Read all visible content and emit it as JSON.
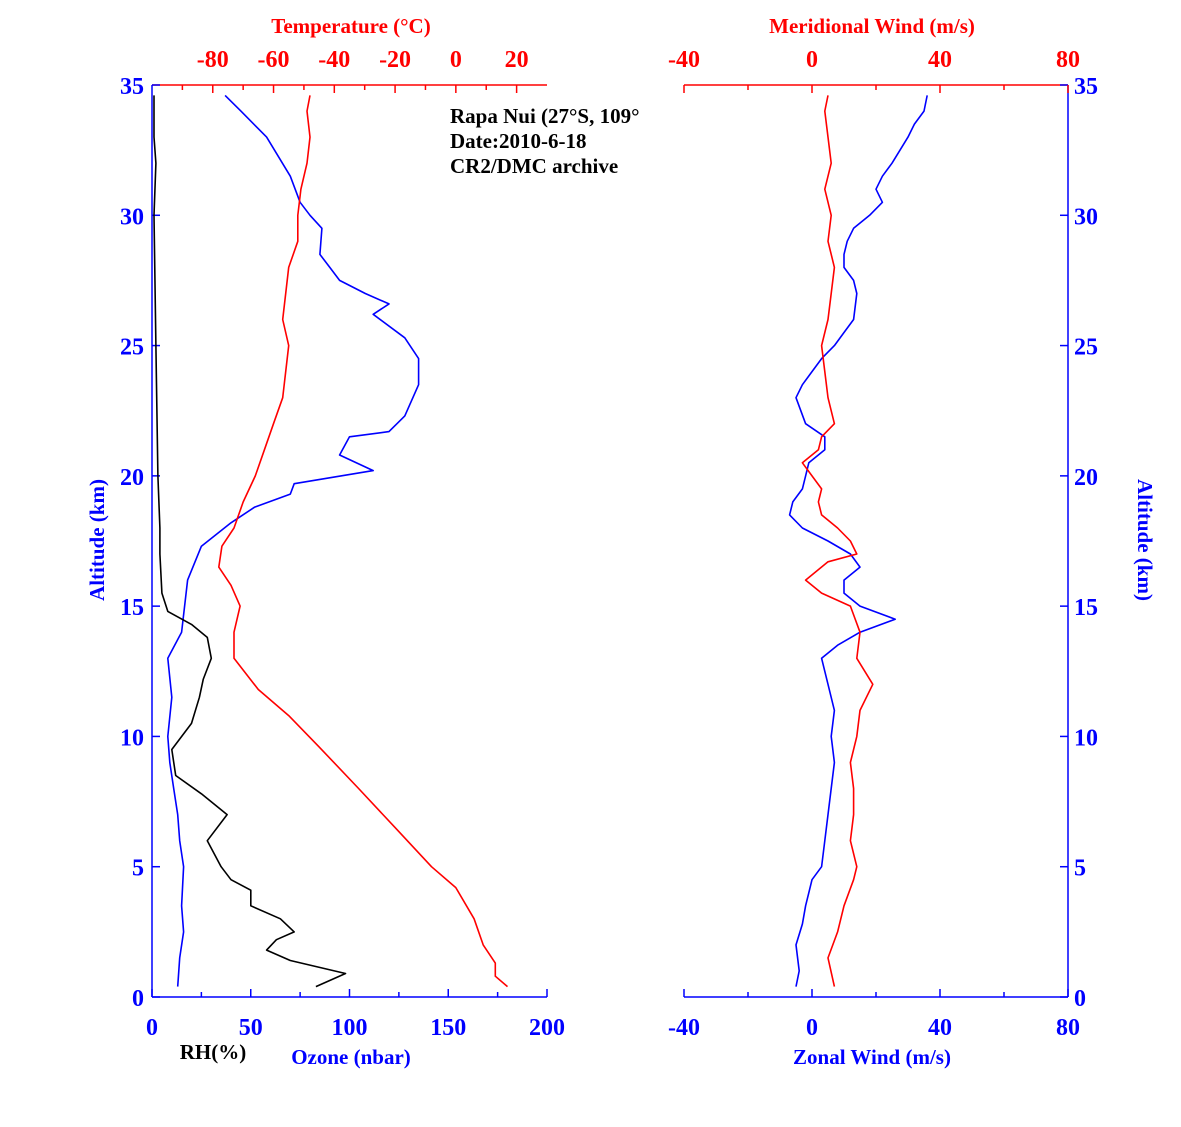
{
  "colors": {
    "blue": "#0000ff",
    "red": "#ff0000",
    "black": "#000000"
  },
  "annotation": {
    "lines": [
      "Rapa Nui (27°S, 109°",
      "Date:2010-6-18",
      "CR2/DMC archive"
    ]
  },
  "chart_data": [
    {
      "type": "line",
      "panel": "left",
      "axes": {
        "y": {
          "label": "Altitude (km)",
          "range": [
            0,
            35
          ],
          "ticks": [
            "0",
            "5",
            "10",
            "15",
            "20",
            "25",
            "30",
            "35"
          ]
        },
        "x_bottom": {
          "label": "Ozone (nbar)",
          "range": [
            0,
            200
          ],
          "ticks": [
            "0",
            "50",
            "100",
            "150",
            "200"
          ]
        },
        "x_bottom_extra_label": "RH(%)",
        "x_top": {
          "label": "Temperature (°C)",
          "range": [
            -100,
            30
          ],
          "ticks": [
            "-80",
            "-60",
            "-40",
            "-20",
            "0",
            "20"
          ]
        }
      },
      "series": [
        {
          "name": "Ozone (nbar)",
          "axis": "x_bottom",
          "color": "#0000ff",
          "points": [
            [
              13,
              0.4
            ],
            [
              14,
              1.5
            ],
            [
              16,
              2.5
            ],
            [
              15,
              3.5
            ],
            [
              16,
              5
            ],
            [
              14,
              6
            ],
            [
              13,
              7
            ],
            [
              11,
              8
            ],
            [
              9,
              9
            ],
            [
              8,
              10
            ],
            [
              10,
              11.5
            ],
            [
              8,
              13
            ],
            [
              15,
              14
            ],
            [
              18,
              16
            ],
            [
              25,
              17.3
            ],
            [
              40,
              18.2
            ],
            [
              52,
              18.8
            ],
            [
              70,
              19.3
            ],
            [
              72,
              19.7
            ],
            [
              112,
              20.2
            ],
            [
              95,
              20.8
            ],
            [
              100,
              21.5
            ],
            [
              120,
              21.7
            ],
            [
              128,
              22.3
            ],
            [
              135,
              23.5
            ],
            [
              135,
              24.5
            ],
            [
              128,
              25.3
            ],
            [
              112,
              26.2
            ],
            [
              120,
              26.6
            ],
            [
              108,
              27
            ],
            [
              95,
              27.5
            ],
            [
              90,
              28
            ],
            [
              85,
              28.5
            ],
            [
              86,
              29.5
            ],
            [
              80,
              30
            ],
            [
              75,
              30.5
            ],
            [
              70,
              31.5
            ],
            [
              58,
              33
            ],
            [
              45,
              34
            ],
            [
              37,
              34.6
            ]
          ]
        },
        {
          "name": "RH(%)",
          "axis": "x_bottom",
          "color": "#000000",
          "points": [
            [
              83,
              0.4
            ],
            [
              98,
              0.9
            ],
            [
              70,
              1.4
            ],
            [
              58,
              1.8
            ],
            [
              63,
              2.2
            ],
            [
              72,
              2.5
            ],
            [
              65,
              3
            ],
            [
              50,
              3.5
            ],
            [
              50,
              4.1
            ],
            [
              40,
              4.5
            ],
            [
              35,
              5
            ],
            [
              28,
              6
            ],
            [
              38,
              7
            ],
            [
              25,
              7.8
            ],
            [
              12,
              8.5
            ],
            [
              10,
              9.5
            ],
            [
              20,
              10.5
            ],
            [
              24,
              11.5
            ],
            [
              26,
              12.2
            ],
            [
              30,
              13
            ],
            [
              28,
              13.8
            ],
            [
              20,
              14.3
            ],
            [
              8,
              14.8
            ],
            [
              5,
              15.5
            ],
            [
              4,
              17
            ],
            [
              4,
              18
            ],
            [
              3,
              20
            ],
            [
              2,
              25
            ],
            [
              1,
              30
            ],
            [
              2,
              32
            ],
            [
              1,
              33
            ],
            [
              1,
              34.6
            ]
          ]
        },
        {
          "name": "Temperature (°C)",
          "axis": "x_top",
          "color": "#ff0000",
          "points": [
            [
              17,
              0.4
            ],
            [
              13,
              0.8
            ],
            [
              13,
              1.3
            ],
            [
              9,
              2
            ],
            [
              6,
              3
            ],
            [
              0,
              4.2
            ],
            [
              -8,
              5
            ],
            [
              -20,
              6.5
            ],
            [
              -32,
              8
            ],
            [
              -45,
              9.6
            ],
            [
              -55,
              10.8
            ],
            [
              -65,
              11.8
            ],
            [
              -73,
              13
            ],
            [
              -73,
              14
            ],
            [
              -71,
              15
            ],
            [
              -74,
              15.8
            ],
            [
              -78,
              16.5
            ],
            [
              -77,
              17.3
            ],
            [
              -73,
              18
            ],
            [
              -70,
              19
            ],
            [
              -66,
              20
            ],
            [
              -63,
              21
            ],
            [
              -60,
              22
            ],
            [
              -57,
              23
            ],
            [
              -56,
              24
            ],
            [
              -55,
              25
            ],
            [
              -57,
              26
            ],
            [
              -56,
              27
            ],
            [
              -55,
              28
            ],
            [
              -52,
              29
            ],
            [
              -52,
              30
            ],
            [
              -51,
              31
            ],
            [
              -49,
              32
            ],
            [
              -48,
              33
            ],
            [
              -49,
              34
            ],
            [
              -48,
              34.6
            ]
          ]
        }
      ]
    },
    {
      "type": "line",
      "panel": "right",
      "axes": {
        "y": {
          "label": "Altitude (km)",
          "range": [
            0,
            35
          ],
          "ticks": [
            "0",
            "5",
            "10",
            "15",
            "20",
            "25",
            "30",
            "35"
          ]
        },
        "x_bottom": {
          "label": "Zonal Wind (m/s)",
          "range": [
            -40,
            80
          ],
          "ticks": [
            "-40",
            "0",
            "40",
            "80"
          ]
        },
        "x_top": {
          "label": "Meridional Wind (m/s)",
          "range": [
            -40,
            80
          ],
          "ticks": [
            "-40",
            "0",
            "40",
            "80"
          ]
        }
      },
      "series": [
        {
          "name": "Zonal Wind (m/s)",
          "axis": "x_bottom",
          "color": "#0000ff",
          "points": [
            [
              -5,
              0.4
            ],
            [
              -4,
              1
            ],
            [
              -5,
              2
            ],
            [
              -3,
              2.8
            ],
            [
              -2,
              3.5
            ],
            [
              -1,
              4
            ],
            [
              0,
              4.5
            ],
            [
              3,
              5
            ],
            [
              4,
              6
            ],
            [
              5,
              7
            ],
            [
              6,
              8
            ],
            [
              7,
              9
            ],
            [
              6,
              10
            ],
            [
              7,
              11
            ],
            [
              5,
              12
            ],
            [
              3,
              13
            ],
            [
              8,
              13.5
            ],
            [
              15,
              14
            ],
            [
              26,
              14.5
            ],
            [
              15,
              15
            ],
            [
              10,
              15.5
            ],
            [
              10,
              16
            ],
            [
              15,
              16.5
            ],
            [
              12,
              17
            ],
            [
              5,
              17.5
            ],
            [
              -3,
              18
            ],
            [
              -7,
              18.5
            ],
            [
              -6,
              19
            ],
            [
              -3,
              19.5
            ],
            [
              -2,
              20
            ],
            [
              -1,
              20.5
            ],
            [
              4,
              21
            ],
            [
              4,
              21.5
            ],
            [
              -2,
              22
            ],
            [
              -5,
              23
            ],
            [
              -3,
              23.5
            ],
            [
              0,
              24
            ],
            [
              3,
              24.5
            ],
            [
              7,
              25
            ],
            [
              10,
              25.5
            ],
            [
              13,
              26
            ],
            [
              14,
              27
            ],
            [
              13,
              27.5
            ],
            [
              10,
              28
            ],
            [
              10,
              28.5
            ],
            [
              11,
              29
            ],
            [
              13,
              29.5
            ],
            [
              18,
              30
            ],
            [
              22,
              30.5
            ],
            [
              20,
              31
            ],
            [
              22,
              31.5
            ],
            [
              25,
              32
            ],
            [
              30,
              33
            ],
            [
              32,
              33.5
            ],
            [
              35,
              34
            ],
            [
              36,
              34.6
            ]
          ]
        },
        {
          "name": "Meridional Wind (m/s)",
          "axis": "x_top",
          "color": "#ff0000",
          "points": [
            [
              7,
              0.4
            ],
            [
              5,
              1.5
            ],
            [
              8,
              2.5
            ],
            [
              10,
              3.5
            ],
            [
              13,
              4.5
            ],
            [
              14,
              5
            ],
            [
              12,
              6
            ],
            [
              13,
              7
            ],
            [
              13,
              8
            ],
            [
              12,
              9
            ],
            [
              14,
              10
            ],
            [
              15,
              11
            ],
            [
              19,
              12
            ],
            [
              14,
              13
            ],
            [
              15,
              14
            ],
            [
              12,
              15
            ],
            [
              3,
              15.5
            ],
            [
              -2,
              16
            ],
            [
              5,
              16.7
            ],
            [
              14,
              17
            ],
            [
              12,
              17.5
            ],
            [
              8,
              18
            ],
            [
              3,
              18.5
            ],
            [
              2,
              19
            ],
            [
              3,
              19.5
            ],
            [
              0,
              20
            ],
            [
              -3,
              20.5
            ],
            [
              2,
              21
            ],
            [
              3,
              21.5
            ],
            [
              7,
              22
            ],
            [
              5,
              23
            ],
            [
              4,
              24
            ],
            [
              3,
              25
            ],
            [
              5,
              26
            ],
            [
              6,
              27
            ],
            [
              7,
              28
            ],
            [
              5,
              29
            ],
            [
              6,
              30
            ],
            [
              4,
              31
            ],
            [
              6,
              32
            ],
            [
              5,
              33
            ],
            [
              4,
              34
            ],
            [
              5,
              34.6
            ]
          ]
        }
      ]
    }
  ]
}
